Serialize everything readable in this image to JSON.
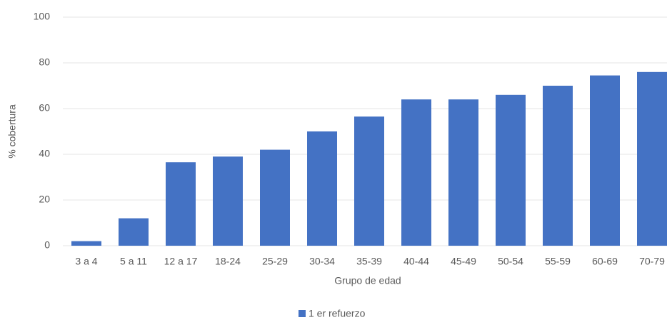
{
  "chart_data": {
    "type": "bar",
    "x_label": "Grupo de edad",
    "y_label": "% cobertura",
    "categories": [
      "3 a 4",
      "5 a 11",
      "12 a 17",
      "18-24",
      "25-29",
      "30-34",
      "35-39",
      "40-44",
      "45-49",
      "50-54",
      "55-59",
      "60-69",
      "70-79"
    ],
    "series": [
      {
        "name": "1 er refuerzo",
        "color": "#4472c4",
        "values": [
          2,
          12,
          36.5,
          39,
          42,
          50,
          56.5,
          64,
          64,
          66,
          70,
          74.5,
          76
        ]
      }
    ],
    "ylim": [
      0,
      100
    ],
    "yticks": [
      0,
      20,
      40,
      60,
      80,
      100
    ],
    "grid": true,
    "legend": "bottom"
  }
}
